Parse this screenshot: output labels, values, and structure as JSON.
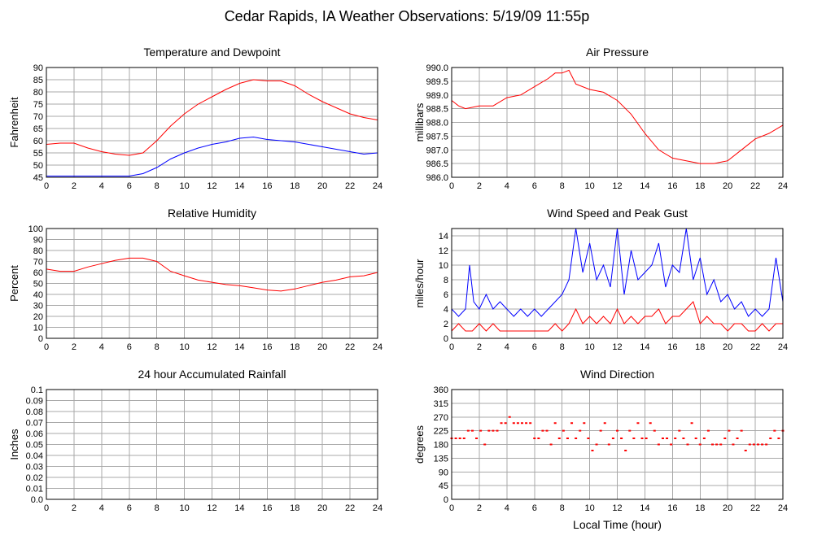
{
  "page": {
    "title": "Cedar Rapids, IA Weather Observations: 5/19/09 11:55p"
  },
  "colors": {
    "red_series": "#ff0000",
    "blue_series": "#0000ff",
    "grid": "#a8a8a8"
  },
  "chart_data": [
    {
      "id": "temp",
      "type": "line",
      "title": "Temperature and Dewpoint",
      "xlabel": "",
      "ylabel": "Fahrenheit",
      "xlim": [
        0,
        24
      ],
      "ylim": [
        45,
        90
      ],
      "xticks": [
        0,
        2,
        4,
        6,
        8,
        10,
        12,
        14,
        16,
        18,
        20,
        22,
        24
      ],
      "yticks": [
        45,
        50,
        55,
        60,
        65,
        70,
        75,
        80,
        85,
        90
      ],
      "grid": true,
      "series": [
        {
          "color": "#ff0000",
          "x": [
            0,
            1,
            2,
            3,
            4,
            5,
            6,
            7,
            8,
            9,
            10,
            11,
            12,
            13,
            14,
            15,
            16,
            17,
            18,
            19,
            20,
            21,
            22,
            23,
            24
          ],
          "y": [
            58.5,
            59,
            59,
            57,
            55.5,
            54.5,
            54,
            55,
            60,
            66,
            71,
            75,
            78,
            81,
            83.5,
            85,
            84.5,
            84.5,
            82.5,
            79,
            76,
            73.5,
            71,
            69.5,
            68.5
          ]
        },
        {
          "color": "#0000ff",
          "x": [
            0,
            1,
            2,
            3,
            4,
            5,
            6,
            7,
            8,
            9,
            10,
            11,
            12,
            13,
            14,
            15,
            16,
            17,
            18,
            19,
            20,
            21,
            22,
            23,
            24
          ],
          "y": [
            45.5,
            45.5,
            45.5,
            45.5,
            45.5,
            45.5,
            45.5,
            46.5,
            49,
            52.5,
            55,
            57,
            58.5,
            59.5,
            61,
            61.5,
            60.5,
            60,
            59.5,
            58.5,
            57.5,
            56.5,
            55.5,
            54.5,
            55
          ]
        }
      ]
    },
    {
      "id": "pressure",
      "type": "line",
      "title": "Air Pressure",
      "xlabel": "",
      "ylabel": "millibars",
      "xlim": [
        0,
        24
      ],
      "ylim": [
        986.0,
        990.0
      ],
      "xticks": [
        0,
        2,
        4,
        6,
        8,
        10,
        12,
        14,
        16,
        18,
        20,
        22,
        24
      ],
      "yticks": [
        "986.0",
        "986.5",
        "987.0",
        "987.5",
        "988.0",
        "988.5",
        "989.0",
        "989.5",
        "990.0"
      ],
      "grid": true,
      "series": [
        {
          "color": "#ff0000",
          "x": [
            0,
            0.5,
            1,
            2,
            3,
            4,
            5,
            6,
            7,
            7.5,
            8,
            8.5,
            9,
            10,
            11,
            12,
            13,
            14,
            15,
            16,
            17,
            18,
            19,
            20,
            21,
            22,
            23,
            24
          ],
          "y": [
            988.8,
            988.6,
            988.5,
            988.6,
            988.6,
            988.9,
            989.0,
            989.3,
            989.6,
            989.8,
            989.8,
            989.9,
            989.4,
            989.2,
            989.1,
            988.8,
            988.3,
            987.6,
            987.0,
            986.7,
            986.6,
            986.5,
            986.5,
            986.6,
            987.0,
            987.4,
            987.6,
            987.9
          ]
        }
      ]
    },
    {
      "id": "humidity",
      "type": "line",
      "title": "Relative Humidity",
      "xlabel": "",
      "ylabel": "Percent",
      "xlim": [
        0,
        24
      ],
      "ylim": [
        0,
        100
      ],
      "xticks": [
        0,
        2,
        4,
        6,
        8,
        10,
        12,
        14,
        16,
        18,
        20,
        22,
        24
      ],
      "yticks": [
        0,
        10,
        20,
        30,
        40,
        50,
        60,
        70,
        80,
        90,
        100
      ],
      "grid": true,
      "series": [
        {
          "color": "#ff0000",
          "x": [
            0,
            1,
            2,
            3,
            4,
            5,
            6,
            7,
            8,
            9,
            10,
            11,
            12,
            13,
            14,
            15,
            16,
            17,
            18,
            19,
            20,
            21,
            22,
            23,
            24
          ],
          "y": [
            63,
            61,
            61,
            65,
            68,
            71,
            73,
            73,
            70,
            61,
            57,
            53,
            51,
            49,
            48,
            46,
            44,
            43,
            45,
            48,
            51,
            53,
            56,
            57,
            60
          ]
        }
      ]
    },
    {
      "id": "wind",
      "type": "line",
      "title": "Wind Speed and Peak Gust",
      "xlabel": "",
      "ylabel": "miles/hour",
      "xlim": [
        0,
        24
      ],
      "ylim": [
        0,
        15
      ],
      "xticks": [
        0,
        2,
        4,
        6,
        8,
        10,
        12,
        14,
        16,
        18,
        20,
        22,
        24
      ],
      "yticks": [
        0,
        2,
        4,
        6,
        8,
        10,
        12,
        14
      ],
      "grid": true,
      "series": [
        {
          "color": "#0000ff",
          "x": [
            0,
            0.5,
            1,
            1.3,
            1.6,
            2,
            2.5,
            3,
            3.5,
            4,
            4.5,
            5,
            5.5,
            6,
            6.5,
            7,
            7.5,
            8,
            8.5,
            9,
            9.5,
            10,
            10.5,
            11,
            11.5,
            12,
            12.5,
            13,
            13.5,
            14,
            14.5,
            15,
            15.5,
            16,
            16.5,
            17,
            17.5,
            18,
            18.5,
            19,
            19.5,
            20,
            20.5,
            21,
            21.5,
            22,
            22.5,
            23,
            23.5,
            24
          ],
          "y": [
            4,
            3,
            4,
            10,
            5,
            4,
            6,
            4,
            5,
            4,
            3,
            4,
            3,
            4,
            3,
            4,
            5,
            6,
            8,
            15,
            9,
            13,
            8,
            10,
            7,
            15,
            6,
            12,
            8,
            9,
            10,
            13,
            7,
            10,
            9,
            15,
            8,
            11,
            6,
            8,
            5,
            6,
            4,
            5,
            3,
            4,
            3,
            4,
            11,
            5
          ]
        },
        {
          "color": "#ff0000",
          "x": [
            0,
            0.5,
            1,
            1.5,
            2,
            2.5,
            3,
            3.5,
            4,
            4.5,
            5,
            5.5,
            6,
            6.5,
            7,
            7.5,
            8,
            8.5,
            9,
            9.5,
            10,
            10.5,
            11,
            11.5,
            12,
            12.5,
            13,
            13.5,
            14,
            14.5,
            15,
            15.5,
            16,
            16.5,
            17,
            17.5,
            18,
            18.5,
            19,
            19.5,
            20,
            20.5,
            21,
            21.5,
            22,
            22.5,
            23,
            23.5,
            24
          ],
          "y": [
            1,
            2,
            1,
            1,
            2,
            1,
            2,
            1,
            1,
            1,
            1,
            1,
            1,
            1,
            1,
            2,
            1,
            2,
            4,
            2,
            3,
            2,
            3,
            2,
            4,
            2,
            3,
            2,
            3,
            3,
            4,
            2,
            3,
            3,
            4,
            5,
            2,
            3,
            2,
            2,
            1,
            2,
            2,
            1,
            1,
            2,
            1,
            2,
            2
          ]
        }
      ]
    },
    {
      "id": "rain",
      "type": "line",
      "title": "24 hour Accumulated Rainfall",
      "xlabel": "",
      "ylabel": "Inches",
      "xlim": [
        0,
        24
      ],
      "ylim": [
        0,
        0.1
      ],
      "xticks": [
        0,
        2,
        4,
        6,
        8,
        10,
        12,
        14,
        16,
        18,
        20,
        22,
        24
      ],
      "yticks": [
        "0.0",
        "0.01",
        "0.02",
        "0.03",
        "0.04",
        "0.05",
        "0.06",
        "0.07",
        "0.08",
        "0.09",
        "0.1"
      ],
      "grid": true,
      "series": [
        {
          "color": "#ff0000",
          "x": [
            0,
            24
          ],
          "y": [
            0,
            0
          ]
        }
      ]
    },
    {
      "id": "direction",
      "type": "scatter",
      "title": "Wind Direction",
      "xlabel": "Local Time (hour)",
      "ylabel": "degrees",
      "xlim": [
        0,
        24
      ],
      "ylim": [
        0,
        360
      ],
      "xticks": [
        0,
        2,
        4,
        6,
        8,
        10,
        12,
        14,
        16,
        18,
        20,
        22,
        24
      ],
      "yticks": [
        0,
        45,
        90,
        135,
        180,
        225,
        270,
        315,
        360
      ],
      "grid": true,
      "series": [
        {
          "color": "#ff0000",
          "x": [
            0,
            0.3,
            0.6,
            0.9,
            1.2,
            1.5,
            1.8,
            2.1,
            2.4,
            2.7,
            3.0,
            3.3,
            3.6,
            3.9,
            4.2,
            4.5,
            4.8,
            5.1,
            5.4,
            5.7,
            6.0,
            6.3,
            6.6,
            6.9,
            7.2,
            7.5,
            7.8,
            8.1,
            8.4,
            8.7,
            9.0,
            9.3,
            9.6,
            9.9,
            10.2,
            10.5,
            10.8,
            11.1,
            11.4,
            11.7,
            12.0,
            12.3,
            12.6,
            12.9,
            13.2,
            13.5,
            13.8,
            14.1,
            14.4,
            14.7,
            15.0,
            15.3,
            15.6,
            15.9,
            16.2,
            16.5,
            16.8,
            17.1,
            17.4,
            17.7,
            18.0,
            18.3,
            18.6,
            18.9,
            19.2,
            19.5,
            19.8,
            20.1,
            20.4,
            20.7,
            21.0,
            21.3,
            21.6,
            21.9,
            22.2,
            22.5,
            22.8,
            23.1,
            23.4,
            23.7,
            24.0
          ],
          "y": [
            200,
            200,
            200,
            200,
            225,
            225,
            200,
            225,
            180,
            225,
            225,
            225,
            250,
            250,
            270,
            250,
            250,
            250,
            250,
            250,
            200,
            200,
            225,
            225,
            180,
            250,
            200,
            225,
            200,
            250,
            200,
            225,
            250,
            200,
            160,
            180,
            225,
            250,
            180,
            200,
            225,
            200,
            160,
            225,
            200,
            250,
            200,
            200,
            250,
            225,
            180,
            200,
            200,
            180,
            200,
            225,
            200,
            180,
            250,
            200,
            180,
            200,
            225,
            180,
            180,
            180,
            200,
            225,
            180,
            200,
            225,
            160,
            180,
            180,
            180,
            180,
            180,
            200,
            225,
            200,
            225
          ]
        }
      ]
    }
  ]
}
